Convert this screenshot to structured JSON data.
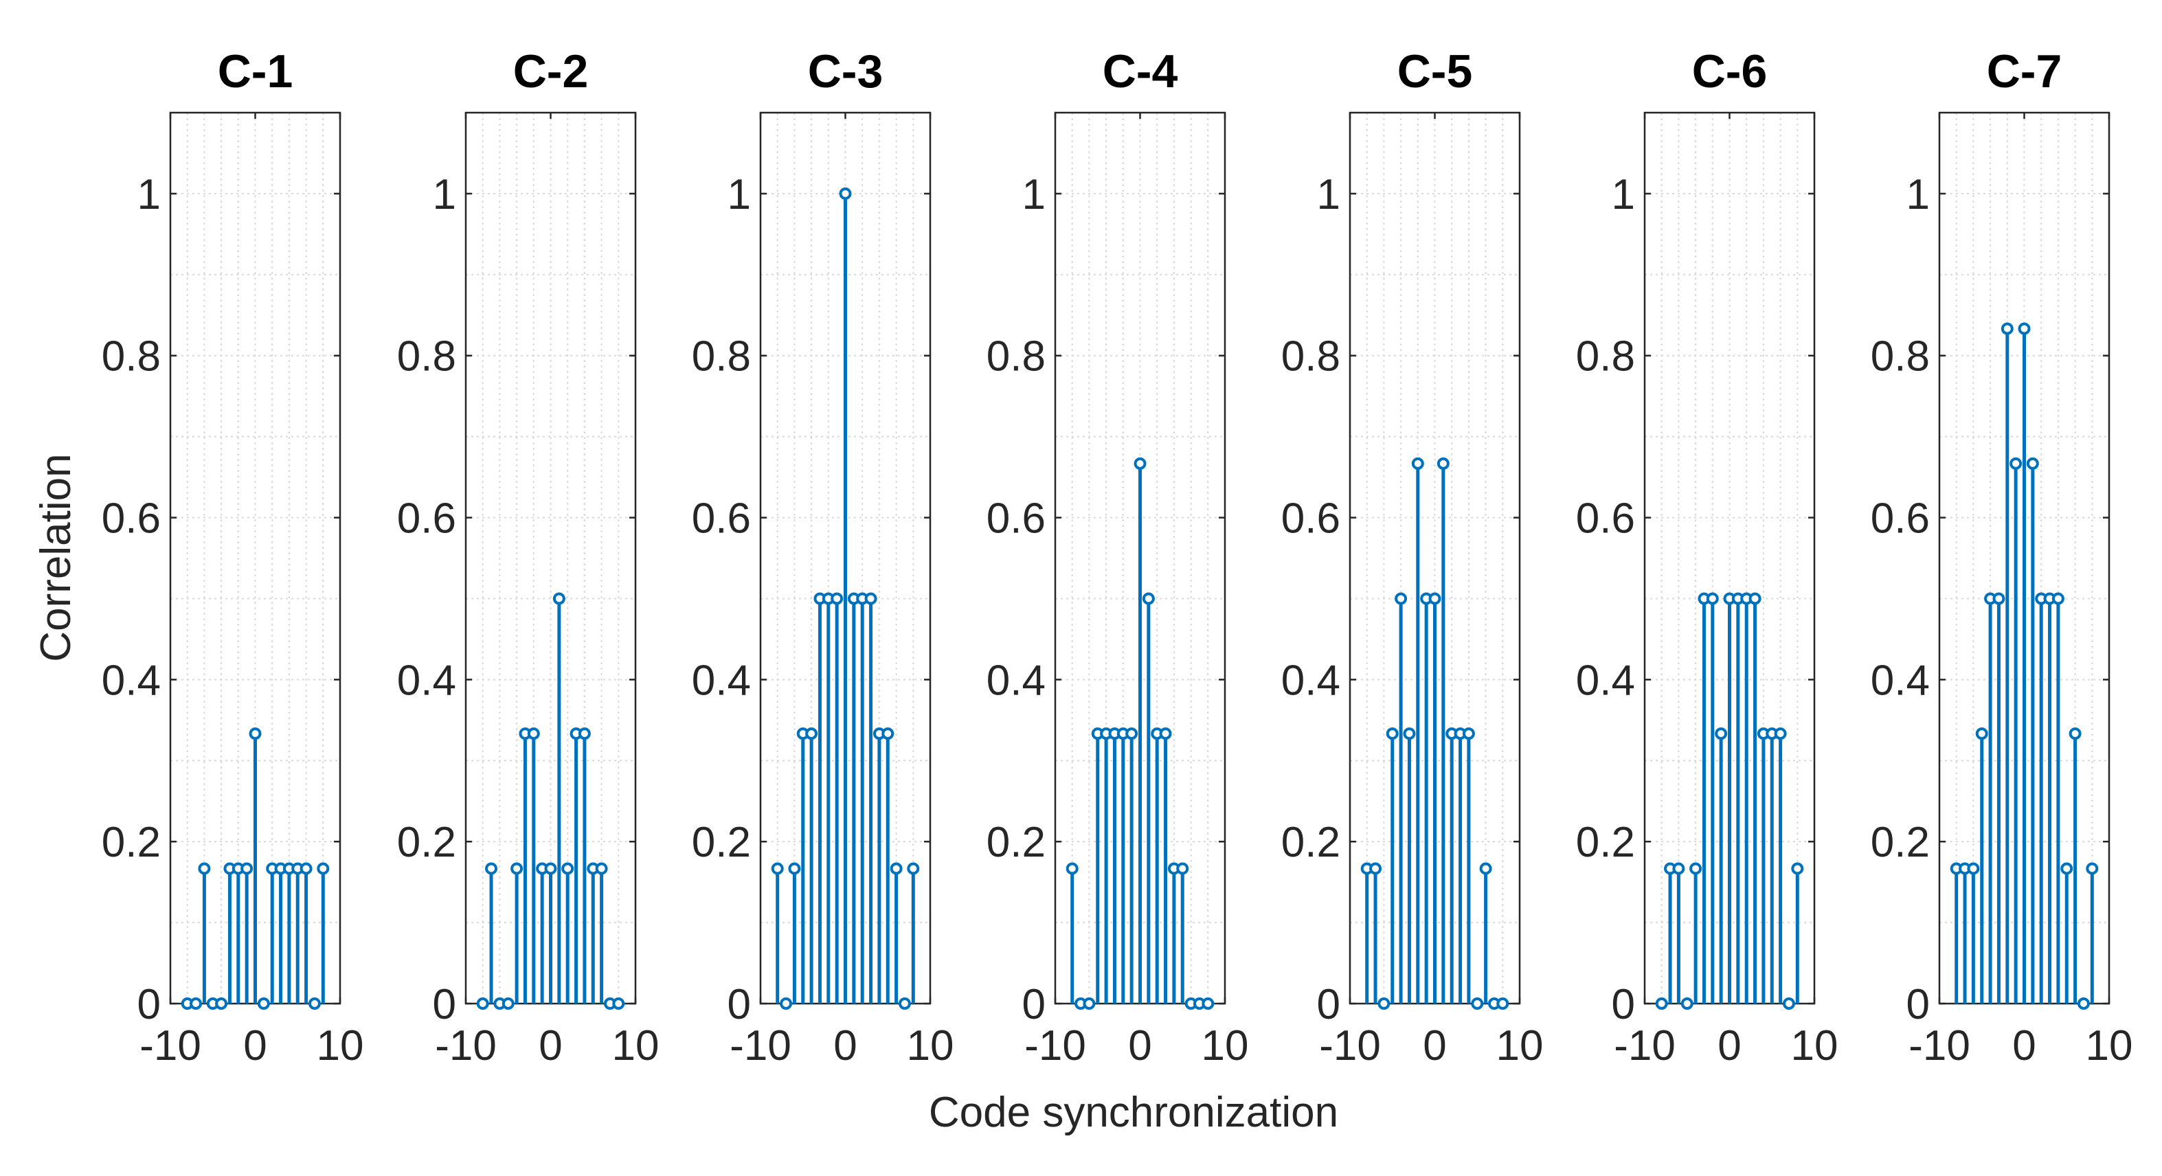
{
  "figure": {
    "xlabel": "Code synchronization",
    "ylabel": "Correlation"
  },
  "colors": {
    "stem": "#0072BD",
    "axis": "#262626",
    "grid": "#d9d9d9"
  },
  "chart_data": [
    {
      "type": "stem",
      "title": "C-1",
      "x": [
        -8,
        -7,
        -6,
        -5,
        -4,
        -3,
        -2,
        -1,
        0,
        1,
        2,
        3,
        4,
        5,
        6,
        7,
        8
      ],
      "values": [
        0,
        0,
        0.1667,
        0,
        0,
        0.1667,
        0.1667,
        0.1667,
        0.3333,
        0,
        0.1667,
        0.1667,
        0.1667,
        0.1667,
        0.1667,
        0,
        0.1667
      ],
      "xlim": [
        -10,
        10
      ],
      "ylim": [
        0,
        1.1
      ],
      "xticks": [
        "-10",
        "0",
        "10"
      ],
      "yticks": [
        "0",
        "0.2",
        "0.4",
        "0.6",
        "0.8",
        "1"
      ],
      "grid": true
    },
    {
      "type": "stem",
      "title": "C-2",
      "x": [
        -8,
        -7,
        -6,
        -5,
        -4,
        -3,
        -2,
        -1,
        0,
        1,
        2,
        3,
        4,
        5,
        6,
        7,
        8
      ],
      "values": [
        0,
        0.1667,
        0,
        0,
        0.1667,
        0.3333,
        0.3333,
        0.1667,
        0.1667,
        0.5,
        0.1667,
        0.3333,
        0.3333,
        0.1667,
        0.1667,
        0,
        0
      ],
      "xlim": [
        -10,
        10
      ],
      "ylim": [
        0,
        1.1
      ],
      "xticks": [
        "-10",
        "0",
        "10"
      ],
      "yticks": [
        "0",
        "0.2",
        "0.4",
        "0.6",
        "0.8",
        "1"
      ],
      "grid": true
    },
    {
      "type": "stem",
      "title": "C-3",
      "x": [
        -8,
        -7,
        -6,
        -5,
        -4,
        -3,
        -2,
        -1,
        0,
        1,
        2,
        3,
        4,
        5,
        6,
        7,
        8
      ],
      "values": [
        0.1667,
        0,
        0.1667,
        0.3333,
        0.3333,
        0.5,
        0.5,
        0.5,
        1,
        0.5,
        0.5,
        0.5,
        0.3333,
        0.3333,
        0.1667,
        0,
        0.1667
      ],
      "xlim": [
        -10,
        10
      ],
      "ylim": [
        0,
        1.1
      ],
      "xticks": [
        "-10",
        "0",
        "10"
      ],
      "yticks": [
        "0",
        "0.2",
        "0.4",
        "0.6",
        "0.8",
        "1"
      ],
      "grid": true
    },
    {
      "type": "stem",
      "title": "C-4",
      "x": [
        -8,
        -7,
        -6,
        -5,
        -4,
        -3,
        -2,
        -1,
        0,
        1,
        2,
        3,
        4,
        5,
        6,
        7,
        8
      ],
      "values": [
        0.1667,
        0,
        0,
        0.3333,
        0.3333,
        0.3333,
        0.3333,
        0.3333,
        0.6667,
        0.5,
        0.3333,
        0.3333,
        0.1667,
        0.1667,
        0,
        0,
        0
      ],
      "xlim": [
        -10,
        10
      ],
      "ylim": [
        0,
        1.1
      ],
      "xticks": [
        "-10",
        "0",
        "10"
      ],
      "yticks": [
        "0",
        "0.2",
        "0.4",
        "0.6",
        "0.8",
        "1"
      ],
      "grid": true
    },
    {
      "type": "stem",
      "title": "C-5",
      "x": [
        -8,
        -7,
        -6,
        -5,
        -4,
        -3,
        -2,
        -1,
        0,
        1,
        2,
        3,
        4,
        5,
        6,
        7,
        8
      ],
      "values": [
        0.1667,
        0.1667,
        0,
        0.3333,
        0.5,
        0.3333,
        0.6667,
        0.5,
        0.5,
        0.6667,
        0.3333,
        0.3333,
        0.3333,
        0,
        0.1667,
        0,
        0
      ],
      "xlim": [
        -10,
        10
      ],
      "ylim": [
        0,
        1.1
      ],
      "xticks": [
        "-10",
        "0",
        "10"
      ],
      "yticks": [
        "0",
        "0.2",
        "0.4",
        "0.6",
        "0.8",
        "1"
      ],
      "grid": true
    },
    {
      "type": "stem",
      "title": "C-6",
      "x": [
        -8,
        -7,
        -6,
        -5,
        -4,
        -3,
        -2,
        -1,
        0,
        1,
        2,
        3,
        4,
        5,
        6,
        7,
        8
      ],
      "values": [
        0,
        0.1667,
        0.1667,
        0,
        0.1667,
        0.5,
        0.5,
        0.3333,
        0.5,
        0.5,
        0.5,
        0.5,
        0.3333,
        0.3333,
        0.3333,
        0,
        0.1667
      ],
      "xlim": [
        -10,
        10
      ],
      "ylim": [
        0,
        1.1
      ],
      "xticks": [
        "-10",
        "0",
        "10"
      ],
      "yticks": [
        "0",
        "0.2",
        "0.4",
        "0.6",
        "0.8",
        "1"
      ],
      "grid": true
    },
    {
      "type": "stem",
      "title": "C-7",
      "x": [
        -8,
        -7,
        -6,
        -5,
        -4,
        -3,
        -2,
        -1,
        0,
        1,
        2,
        3,
        4,
        5,
        6,
        7,
        8
      ],
      "values": [
        0.1667,
        0.1667,
        0.1667,
        0.3333,
        0.5,
        0.5,
        0.8333,
        0.6667,
        0.8333,
        0.6667,
        0.5,
        0.5,
        0.5,
        0.1667,
        0.3333,
        0,
        0.1667
      ],
      "xlim": [
        -10,
        10
      ],
      "ylim": [
        0,
        1.1
      ],
      "xticks": [
        "-10",
        "0",
        "10"
      ],
      "yticks": [
        "0",
        "0.2",
        "0.4",
        "0.6",
        "0.8",
        "1"
      ],
      "grid": true
    }
  ]
}
